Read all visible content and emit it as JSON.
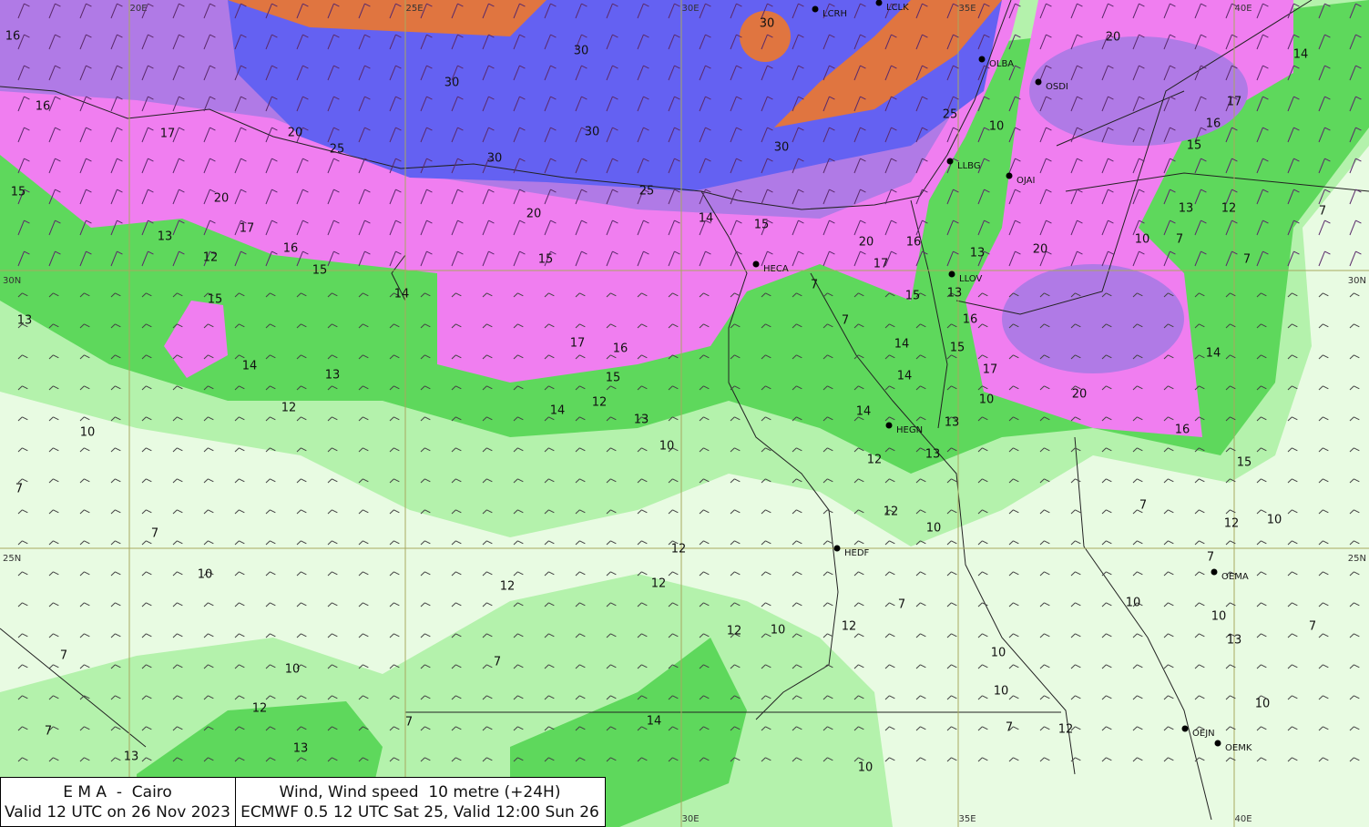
{
  "header": {
    "left_title": "E M A  -  Cairo",
    "left_subtitle": "Valid 12 UTC on 26 Nov 2023",
    "right_title": "Wind, Wind speed  10 metre (+24H)",
    "right_subtitle": "ECMWF 0.5 12 UTC Sat 25, Valid 12:00 Sun 26"
  },
  "stations": [
    "LCRH",
    "LCLK",
    "OLBA",
    "OSDI",
    "LLBG",
    "OJAI",
    "HECA",
    "LLOV",
    "HEGN",
    "HEDF",
    "OEMA",
    "OEJN",
    "OEMK"
  ],
  "grid_labels": {
    "top": [
      "20E",
      "25E",
      "30E",
      "35E",
      "40E"
    ],
    "left": [
      "30N",
      "25N"
    ],
    "right": [
      "30N",
      "25N"
    ],
    "bottom": [
      "30E",
      "35E",
      "40E"
    ]
  },
  "contour_labels": [
    16,
    16,
    17,
    20,
    25,
    30,
    30,
    30,
    30,
    30,
    30,
    25,
    20,
    15,
    20,
    17,
    16,
    15,
    13,
    12,
    15,
    13,
    14,
    15,
    14,
    15,
    20,
    17,
    16,
    13,
    20,
    15,
    13,
    16,
    15,
    17,
    10,
    20,
    16,
    14,
    15,
    12,
    10,
    10,
    7,
    13,
    12,
    7,
    7,
    15,
    16,
    17,
    14,
    20,
    25,
    10,
    7,
    7,
    14,
    14,
    14,
    13,
    13,
    12,
    12,
    10,
    17,
    16,
    15,
    12,
    14,
    13,
    10,
    14,
    13,
    12,
    10,
    7,
    7,
    10,
    12,
    12,
    12,
    12,
    10,
    12,
    7,
    10,
    10,
    13,
    7,
    10,
    10,
    7,
    12,
    10,
    7,
    10,
    7,
    12,
    13,
    7,
    13,
    14,
    10,
    7,
    7,
    7
  ]
}
